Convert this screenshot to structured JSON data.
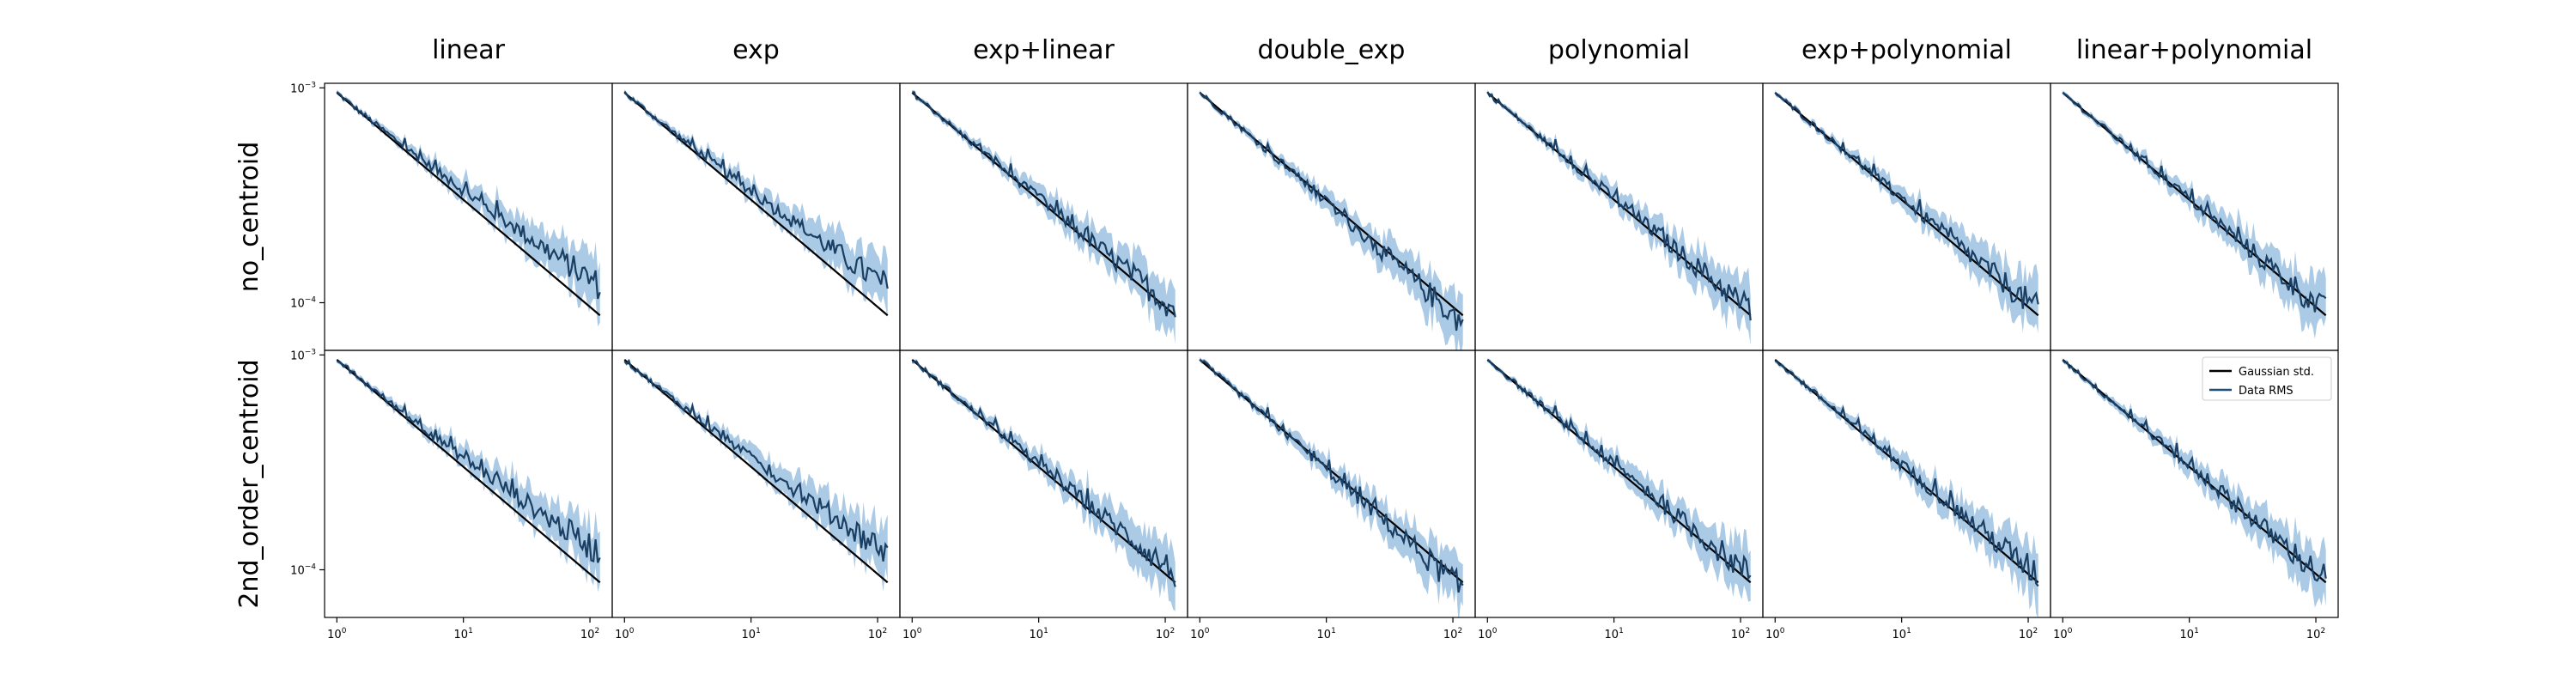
{
  "figure": {
    "column_titles": [
      "linear",
      "exp",
      "exp+linear",
      "double_exp",
      "polynomial",
      "exp+polynomial",
      "linear+polynomial"
    ],
    "row_labels": [
      "no_centroid",
      "2nd_order_centroid"
    ]
  },
  "legend": {
    "placement": "upper right of bottom-right panel",
    "entries": [
      {
        "label": "Gaussian std.",
        "color": "#000000"
      },
      {
        "label": "Data RMS",
        "color": "#1f4e79"
      }
    ]
  },
  "colors": {
    "gaussian": "#000000",
    "data_line": "#1b3f63",
    "data_band": "#8fb8dc",
    "axes": "#000000"
  },
  "chart_data": {
    "type": "line",
    "layout": "grid 2 rows x 7 columns, shared axes",
    "xscale": "log",
    "yscale": "log",
    "xlim": [
      0.8,
      150
    ],
    "ylim": [
      6e-05,
      0.00105
    ],
    "x_ticks": [
      {
        "value": 1,
        "base": "10",
        "exp": "0"
      },
      {
        "value": 10,
        "base": "10",
        "exp": "1"
      },
      {
        "value": 100,
        "base": "10",
        "exp": "2"
      }
    ],
    "y_ticks": [
      {
        "value": 0.0001,
        "base": "10",
        "exp": "−4"
      },
      {
        "value": 0.001,
        "base": "10",
        "exp": "−3"
      }
    ],
    "gaussian_std": {
      "name": "Gaussian std.",
      "x": [
        1,
        120
      ],
      "y": [
        0.00095,
        8.73e-05
      ]
    },
    "data_rms_endpoints": {
      "x": [
        1,
        2,
        3,
        5,
        10,
        20,
        50,
        80,
        120
      ],
      "panels": [
        {
          "row": "no_centroid",
          "column": "linear",
          "y_end": 0.00012
        },
        {
          "row": "no_centroid",
          "column": "exp",
          "y_end": 0.000118
        },
        {
          "row": "no_centroid",
          "column": "exp+linear",
          "y_end": 9.3e-05
        },
        {
          "row": "no_centroid",
          "column": "double_exp",
          "y_end": 8e-05
        },
        {
          "row": "no_centroid",
          "column": "polynomial",
          "y_end": 9.2e-05
        },
        {
          "row": "no_centroid",
          "column": "exp+polynomial",
          "y_end": 9.2e-05
        },
        {
          "row": "no_centroid",
          "column": "linear+polynomial",
          "y_end": 9e-05
        },
        {
          "row": "2nd_order_centroid",
          "column": "linear",
          "y_end": 0.00012
        },
        {
          "row": "2nd_order_centroid",
          "column": "exp",
          "y_end": 0.00012
        },
        {
          "row": "2nd_order_centroid",
          "column": "exp+linear",
          "y_end": 9.6e-05
        },
        {
          "row": "2nd_order_centroid",
          "column": "double_exp",
          "y_end": 8e-05
        },
        {
          "row": "2nd_order_centroid",
          "column": "polynomial",
          "y_end": 9.4e-05
        },
        {
          "row": "2nd_order_centroid",
          "column": "exp+polynomial",
          "y_end": 9.4e-05
        },
        {
          "row": "2nd_order_centroid",
          "column": "linear+polynomial",
          "y_end": 9e-05
        }
      ]
    }
  }
}
